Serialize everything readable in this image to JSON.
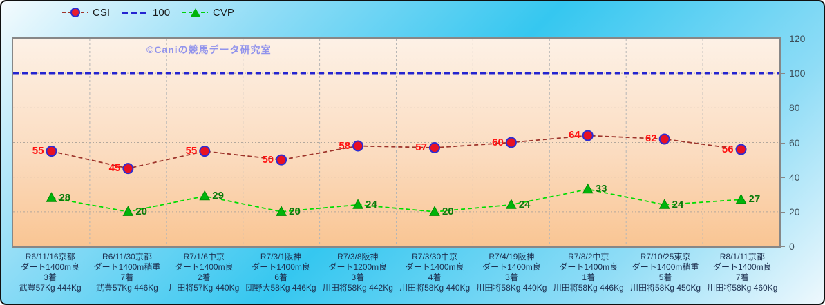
{
  "watermark_text": "©Caniの競馬データ研究室",
  "theme": {
    "background_light": "#f4fbfe",
    "background_cyan": "#35c7f0",
    "plot_top": "#fdf1e6",
    "plot_bottom": "#f9c593",
    "plot_border": "#878787",
    "axis_label_color": "#1d3050",
    "tick_label_color": "#3d4e59",
    "watermark_color": "#9193ec"
  },
  "chart_data": {
    "type": "line",
    "title": "",
    "watermark": "©Caniの競馬データ研究室",
    "legend_position": "top",
    "grid": true,
    "ylim": [
      0,
      120
    ],
    "yticks": [
      0,
      20,
      40,
      60,
      80,
      100,
      120
    ],
    "categories": [
      [
        "R6/11/16京都",
        "ダート1400m良",
        "3着",
        "武豊57Kg 444Kg"
      ],
      [
        "R6/11/30京都",
        "ダート1400m稍重",
        "7着",
        "武豊57Kg 446Kg"
      ],
      [
        "R7/1/6中京",
        "ダート1400m良",
        "2着",
        "川田将57Kg 440Kg"
      ],
      [
        "R7/3/1阪神",
        "ダート1400m良",
        "6着",
        "団野大58Kg 446Kg"
      ],
      [
        "R7/3/8阪神",
        "ダート1200m良",
        "3着",
        "川田将58Kg 442Kg"
      ],
      [
        "R7/3/30中京",
        "ダート1400m良",
        "4着",
        "川田将58Kg 440Kg"
      ],
      [
        "R7/4/19阪神",
        "ダート1400m良",
        "3着",
        "川田将58Kg 440Kg"
      ],
      [
        "R7/8/2中京",
        "ダート1400m良",
        "1着",
        "川田将58Kg 446Kg"
      ],
      [
        "R7/10/25東京",
        "ダート1400m稍重",
        "5着",
        "川田将58Kg 450Kg"
      ],
      [
        "R8/1/11京都",
        "ダート1400m良",
        "7着",
        "川田将58Kg 460Kg"
      ]
    ],
    "series": [
      {
        "name": "CSI",
        "marker": "circle",
        "label_side": "left",
        "values": [
          55,
          45,
          55,
          50,
          58,
          57,
          60,
          64,
          62,
          56
        ],
        "colors": {
          "line": "#9e342b",
          "marker": "#e81123",
          "marker_edge": "#2d2dd2",
          "label": "#ff1111"
        }
      },
      {
        "name": "100",
        "constant": 100,
        "colors": {
          "line": "#2424d0"
        }
      },
      {
        "name": "CVP",
        "marker": "triangle",
        "label_side": "right",
        "values": [
          28,
          20,
          29,
          20,
          24,
          20,
          24,
          33,
          24,
          27
        ],
        "colors": {
          "line": "#00dd00",
          "marker": "#00b40b",
          "marker_edge": "#008f00",
          "label": "#0a7a0a"
        }
      }
    ]
  }
}
